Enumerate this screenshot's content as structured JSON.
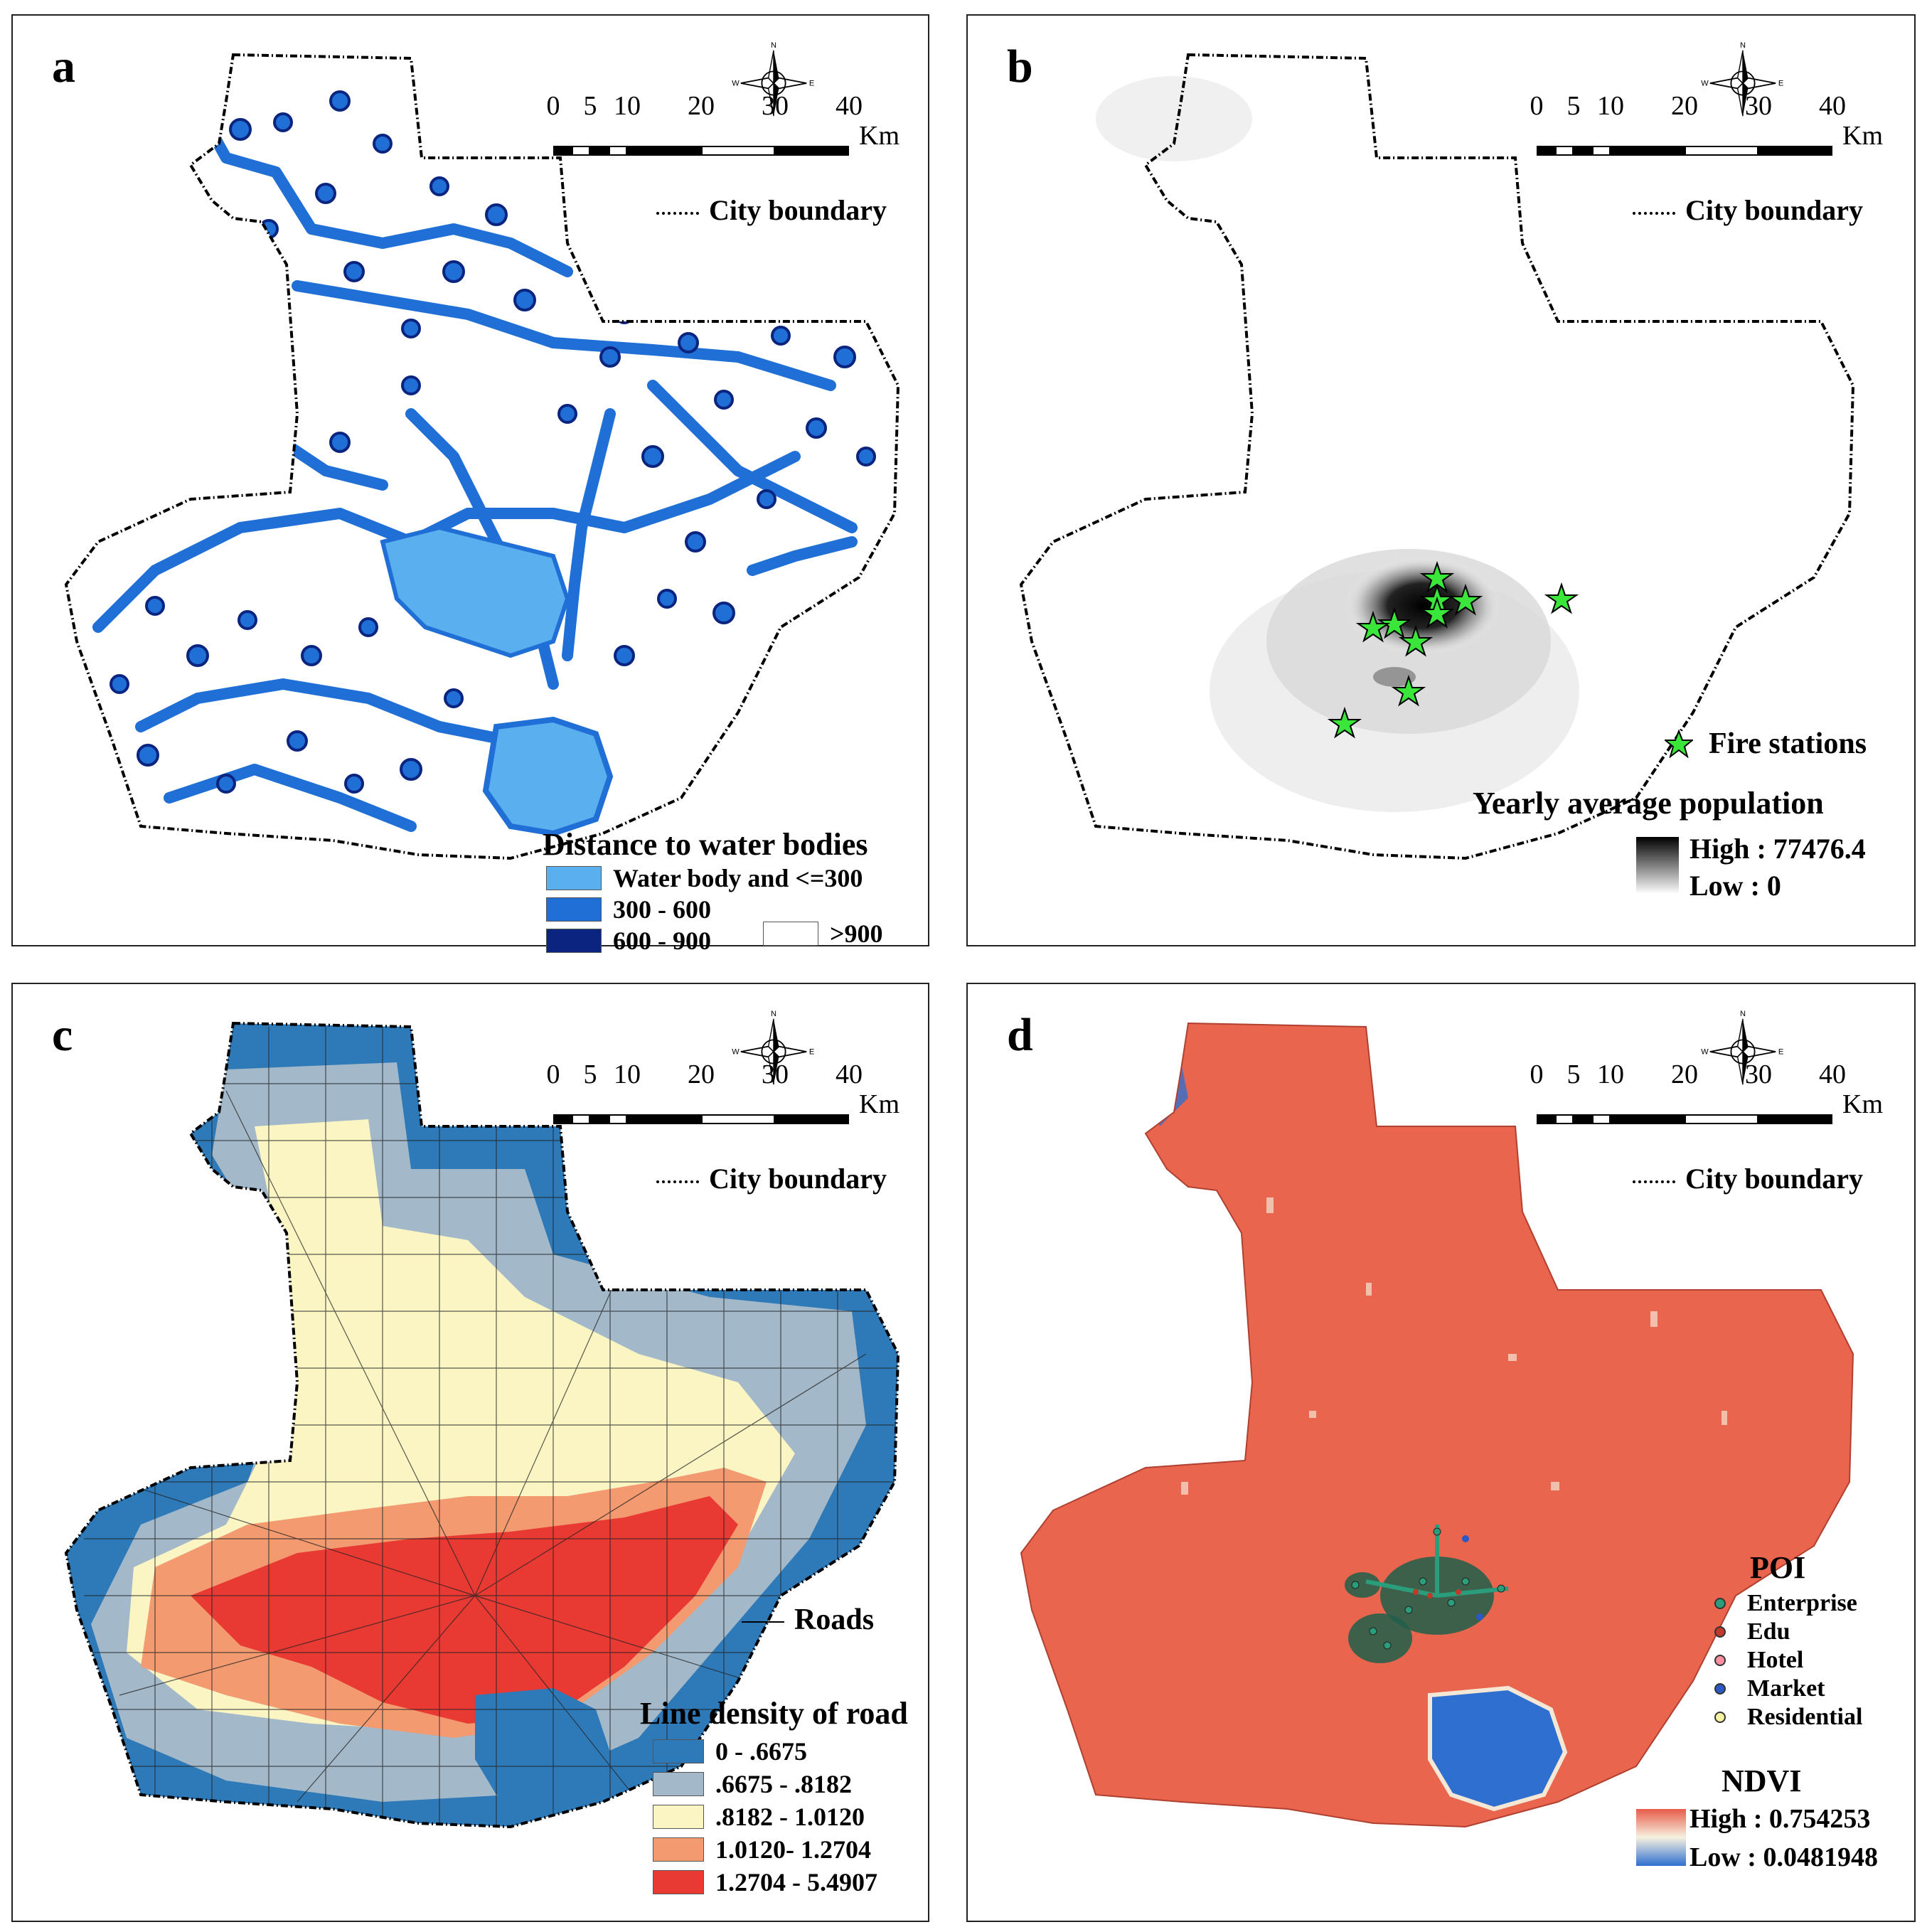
{
  "scale_bar": {
    "ticks": [
      "0",
      "5",
      "10",
      "20",
      "30",
      "40"
    ],
    "unit": "Km"
  },
  "boundary_label": "City boundary",
  "panels": {
    "a": {
      "label": "a",
      "legend_title": "Distance to water bodies",
      "classes": [
        {
          "label": "Water body and <=300",
          "color": "#5aafee"
        },
        {
          "label": "300 - 600",
          "color": "#1f6fd6"
        },
        {
          "label": "600 - 900",
          "color": "#0a2480"
        },
        {
          "label": ">900",
          "color": "#ffffff"
        }
      ]
    },
    "b": {
      "label": "b",
      "point_legend": "Fire stations",
      "point_color": "#39e639",
      "legend_title": "Yearly average population",
      "high": "High : 77476.4",
      "low": "Low : 0"
    },
    "c": {
      "label": "c",
      "roads_label": "Roads",
      "legend_title": "Line density of road",
      "classes": [
        {
          "label": "0 - .6675",
          "color": "#2e7ab8"
        },
        {
          "label": ".6675 - .8182",
          "color": "#a3b8c8"
        },
        {
          "label": ".8182 - 1.0120",
          "color": "#fbf5c4"
        },
        {
          "label": "1.0120- 1.2704",
          "color": "#f39a70"
        },
        {
          "label": "1.2704 - 5.4907",
          "color": "#e83a33"
        }
      ]
    },
    "d": {
      "label": "d",
      "poi_title": "POI",
      "poi_items": [
        {
          "label": "Enterprise",
          "color": "#2a9d7a"
        },
        {
          "label": "Edu",
          "color": "#c0392b"
        },
        {
          "label": "Hotel",
          "color": "#ff8fa0"
        },
        {
          "label": "Market",
          "color": "#2b59c3"
        },
        {
          "label": "Residential",
          "color": "#f7f3a0"
        }
      ],
      "legend_title": "NDVI",
      "high": "High : 0.754253",
      "low": "Low : 0.0481948"
    }
  }
}
